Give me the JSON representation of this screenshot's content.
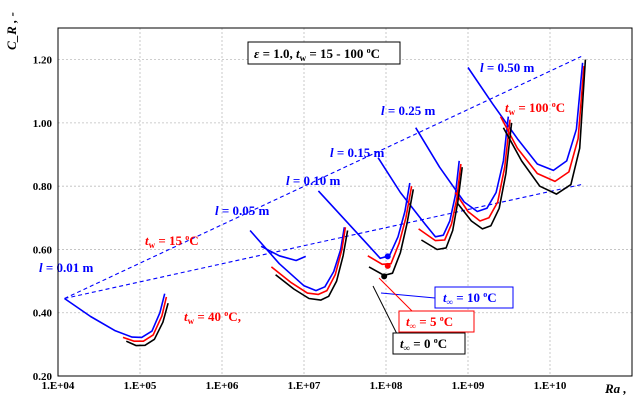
{
  "chart_data": {
    "type": "line",
    "xlabel": "Ra ,",
    "ylabel": "C_R , -",
    "x_scale": "log",
    "xlim": [
      10000,
      100000000000
    ],
    "ylim": [
      0.2,
      1.3
    ],
    "x_ticks": [
      "1.E+04",
      "1.E+05",
      "1.E+06",
      "1.E+07",
      "1.E+08",
      "1.E+09",
      "1.E+10"
    ],
    "y_ticks": [
      "0.20",
      "0.40",
      "0.60",
      "0.80",
      "1.00",
      "1.20"
    ],
    "grid": true,
    "title_box": {
      "italic_eps": "ε",
      "text1": " = 1.0, ",
      "italic_t": "t",
      "sub_w": "w",
      "text2": " = 15 - 100 ",
      "deg": "o",
      "unit": "C"
    },
    "series": [
      {
        "color": "#0000ff",
        "segments": [
          [
            [
              12000,
              0.445
            ],
            [
              25000,
              0.388
            ],
            [
              50000,
              0.343
            ],
            [
              80000,
              0.323
            ],
            [
              105000,
              0.322
            ],
            [
              140000,
              0.342
            ],
            [
              175000,
              0.4
            ],
            [
              200000,
              0.46
            ]
          ],
          [
            [
              2200000,
              0.66
            ],
            [
              5000000,
              0.555
            ],
            [
              10000000,
              0.485
            ],
            [
              14000000,
              0.47
            ],
            [
              18000000,
              0.482
            ],
            [
              23000000,
              0.53
            ],
            [
              28000000,
              0.6
            ],
            [
              31000000,
              0.67
            ]
          ],
          [
            [
              3000000,
              0.61
            ],
            [
              5000000,
              0.58
            ],
            [
              8000000,
              0.565
            ],
            [
              10500000,
              0.578
            ]
          ],
          [
            [
              15000000,
              0.785
            ],
            [
              30000000,
              0.7
            ],
            [
              60000000,
              0.615
            ],
            [
              85000000,
              0.572
            ],
            [
              110000000,
              0.58
            ],
            [
              140000000,
              0.64
            ],
            [
              170000000,
              0.72
            ],
            [
              195000000,
              0.81
            ]
          ],
          [
            [
              80000000,
              0.89
            ],
            [
              150000000,
              0.78
            ],
            [
              300000000,
              0.68
            ],
            [
              400000000,
              0.64
            ],
            [
              500000000,
              0.645
            ],
            [
              600000000,
              0.69
            ],
            [
              700000000,
              0.77
            ],
            [
              780000000,
              0.88
            ]
          ],
          [
            [
              230000000,
              0.985
            ],
            [
              450000000,
              0.86
            ],
            [
              900000000,
              0.75
            ],
            [
              1300000000,
              0.72
            ],
            [
              1700000000,
              0.73
            ],
            [
              2200000000,
              0.78
            ],
            [
              2700000000,
              0.88
            ],
            [
              3100000000,
              1.02
            ]
          ],
          [
            [
              1000000000,
              1.175
            ],
            [
              2000000000,
              1.06
            ],
            [
              4000000000,
              0.95
            ],
            [
              7000000000,
              0.87
            ],
            [
              11000000000,
              0.85
            ],
            [
              16000000000,
              0.88
            ],
            [
              21000000000,
              0.98
            ],
            [
              25000000000,
              1.19
            ]
          ]
        ]
      },
      {
        "color": "#ff0000",
        "segments": [
          [
            [
              62000,
              0.322
            ],
            [
              85000,
              0.31
            ],
            [
              110000,
              0.31
            ],
            [
              145000,
              0.33
            ],
            [
              185000,
              0.39
            ],
            [
              210000,
              0.45
            ]
          ],
          [
            [
              4000000,
              0.545
            ],
            [
              7000000,
              0.495
            ],
            [
              11000000,
              0.462
            ],
            [
              15000000,
              0.458
            ],
            [
              19000000,
              0.47
            ],
            [
              24000000,
              0.52
            ],
            [
              29000000,
              0.6
            ],
            [
              32000000,
              0.67
            ]
          ],
          [
            [
              60000000,
              0.58
            ],
            [
              90000000,
              0.553
            ],
            [
              115000000,
              0.555
            ],
            [
              145000000,
              0.62
            ],
            [
              175000000,
              0.7
            ],
            [
              205000000,
              0.8
            ]
          ],
          [
            [
              250000000,
              0.665
            ],
            [
              400000000,
              0.628
            ],
            [
              520000000,
              0.63
            ],
            [
              630000000,
              0.68
            ],
            [
              730000000,
              0.76
            ],
            [
              820000000,
              0.87
            ]
          ],
          [
            [
              700000000,
              0.78
            ],
            [
              1000000000,
              0.72
            ],
            [
              1400000000,
              0.69
            ],
            [
              1800000000,
              0.7
            ],
            [
              2300000000,
              0.75
            ],
            [
              2800000000,
              0.86
            ],
            [
              3250000000,
              1.01
            ]
          ],
          [
            [
              2500000000,
              1.02
            ],
            [
              4000000000,
              0.92
            ],
            [
              7000000000,
              0.84
            ],
            [
              11500000000,
              0.815
            ],
            [
              17000000000,
              0.845
            ],
            [
              22000000000,
              0.95
            ],
            [
              26000000000,
              1.18
            ]
          ]
        ]
      },
      {
        "color": "#000000",
        "segments": [
          [
            [
              68000,
              0.31
            ],
            [
              90000,
              0.296
            ],
            [
              115000,
              0.297
            ],
            [
              150000,
              0.316
            ],
            [
              190000,
              0.37
            ],
            [
              220000,
              0.43
            ]
          ],
          [
            [
              4500000,
              0.52
            ],
            [
              7500000,
              0.475
            ],
            [
              11500000,
              0.445
            ],
            [
              16000000,
              0.44
            ],
            [
              20000000,
              0.452
            ],
            [
              25000000,
              0.5
            ],
            [
              30000000,
              0.58
            ],
            [
              34000000,
              0.66
            ]
          ],
          [
            [
              62000000,
              0.545
            ],
            [
              95000000,
              0.518
            ],
            [
              120000000,
              0.525
            ],
            [
              150000000,
              0.59
            ],
            [
              180000000,
              0.68
            ],
            [
              215000000,
              0.79
            ]
          ],
          [
            [
              270000000,
              0.63
            ],
            [
              420000000,
              0.6
            ],
            [
              540000000,
              0.605
            ],
            [
              650000000,
              0.66
            ],
            [
              750000000,
              0.75
            ],
            [
              850000000,
              0.86
            ]
          ],
          [
            [
              750000000,
              0.745
            ],
            [
              1100000000,
              0.69
            ],
            [
              1500000000,
              0.665
            ],
            [
              1900000000,
              0.675
            ],
            [
              2400000000,
              0.73
            ],
            [
              2900000000,
              0.84
            ],
            [
              3400000000,
              1.0
            ]
          ],
          [
            [
              2700000000,
              0.985
            ],
            [
              4500000000,
              0.88
            ],
            [
              7500000000,
              0.8
            ],
            [
              12000000000,
              0.775
            ],
            [
              18000000000,
              0.805
            ],
            [
              23000000000,
              0.92
            ],
            [
              27000000000,
              1.2
            ]
          ]
        ]
      }
    ],
    "envelopes": [
      {
        "color": "#0000ff",
        "points": [
          [
            12000,
            0.445
          ],
          [
            24000000000,
            1.21
          ]
        ]
      },
      {
        "color": "#0000ff",
        "points": [
          [
            12000,
            0.445
          ],
          [
            24000000000,
            0.805
          ]
        ]
      }
    ],
    "markers": [
      {
        "x": 105000000,
        "y": 0.578,
        "color": "#0000ff"
      },
      {
        "x": 105000000,
        "y": 0.548,
        "color": "#ff0000"
      },
      {
        "x": 95000000,
        "y": 0.515,
        "color": "#000000"
      }
    ],
    "l_labels": [
      {
        "italic": "l",
        "text": " = 0.01 m",
        "color": "#0000ff"
      },
      {
        "italic": "l",
        "text": " = 0.05 m",
        "color": "#0000ff"
      },
      {
        "italic": "l",
        "text": " = 0.10 m",
        "color": "#0000ff"
      },
      {
        "italic": "l",
        "text": " = 0.15 m",
        "color": "#0000ff"
      },
      {
        "italic": "l",
        "text": " = 0.25 m",
        "color": "#0000ff"
      },
      {
        "italic": "l",
        "text": " = 0.50 m",
        "color": "#0000ff"
      }
    ],
    "tw_labels": [
      {
        "italic": "t",
        "sub": "w",
        "text": " = 15 ",
        "deg": "o",
        "unit": "C",
        "tail": "",
        "color": "#ff0000"
      },
      {
        "italic": "t",
        "sub": "w",
        "text": " = 40 ",
        "deg": "o",
        "unit": "C",
        "tail": ",",
        "color": "#ff0000"
      },
      {
        "italic": "t",
        "sub": "w",
        "text": " = 100 ",
        "deg": "o",
        "unit": "C",
        "tail": "",
        "color": "#ff0000"
      }
    ],
    "tinf_boxes": [
      {
        "italic": "t",
        "sub": "∞",
        "text": " = 10 ",
        "deg": "o",
        "unit": "C",
        "color": "#0000ff"
      },
      {
        "italic": "t",
        "sub": "∞",
        "text": " = 5 ",
        "deg": "o",
        "unit": "C",
        "color": "#ff0000"
      },
      {
        "italic": "t",
        "sub": "∞",
        "text": " = 0 ",
        "deg": "o",
        "unit": "C",
        "color": "#000000"
      }
    ]
  }
}
